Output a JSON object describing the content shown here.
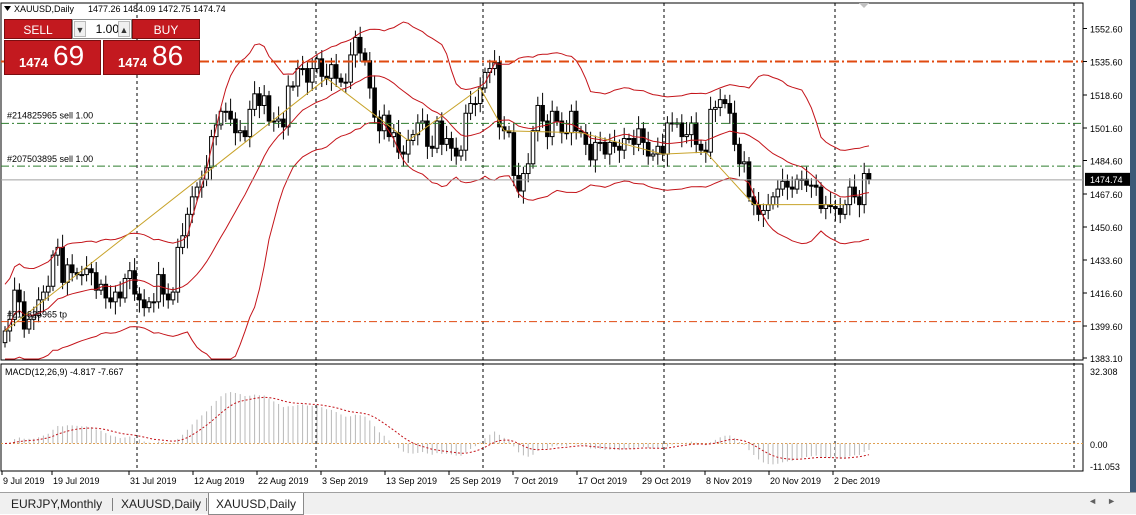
{
  "chart_header": {
    "title": "XAUUSD,Daily",
    "ohlc": "1477.26 1484.09 1472.75 1474.74"
  },
  "trade_panel": {
    "sell_label": "SELL",
    "buy_label": "BUY",
    "lot_value": "1.00",
    "sell_price_small": "1474",
    "sell_price_big": "69",
    "buy_price_small": "1474",
    "buy_price_big": "86",
    "dec_icon": "arrow-down-icon",
    "inc_icon": "arrow-up-icon"
  },
  "order_lines": {
    "sell1": "#214825965 sell 1.00",
    "sell2": "#207503895 sell 1.00",
    "tp": "#214825965 tp"
  },
  "macd": {
    "label": "MACD(12,26,9) -4.817 -7.667"
  },
  "current_price_label": "1474.74",
  "tabs": [
    {
      "label": "EURJPY,Monthly",
      "active": false
    },
    {
      "label": "XAUUSD,Daily",
      "active": false
    },
    {
      "label": "XAUUSD,Daily",
      "active": true
    }
  ],
  "colors": {
    "sell_red": "#c3191f",
    "bollinger": "#c4141a",
    "zigzag": "#c8a32a",
    "sell_level": "#e04a10",
    "order_line": "#2e7d2e",
    "macd_signal": "#c4141a",
    "macd_hist": "#b8b8b8"
  },
  "chart_data": {
    "type": "candlestick",
    "price_axis_ticks": [
      "1552.60",
      "1535.60",
      "1518.60",
      "1501.60",
      "1484.60",
      "1467.60",
      "1450.60",
      "1433.60",
      "1416.60",
      "1399.60",
      "1383.10"
    ],
    "price_range": [
      1383.1,
      1552.6
    ],
    "macd_axis_ticks": [
      "32.308",
      "0.00",
      "-11.053"
    ],
    "date_ticks": [
      "9 Jul 2019",
      "19 Jul 2019",
      "31 Jul 2019",
      "12 Aug 2019",
      "22 Aug 2019",
      "3 Sep 2019",
      "13 Sep 2019",
      "25 Sep 2019",
      "7 Oct 2019",
      "17 Oct 2019",
      "29 Oct 2019",
      "8 Nov 2019",
      "20 Nov 2019",
      "2 Dec 2019"
    ],
    "levels": {
      "sell_entry": 1535.6,
      "order_1": 1503.8,
      "order_2": 1481.8,
      "take_profit": 1401.8,
      "current_price": 1474.74
    },
    "close_prices": [
      1397,
      1403,
      1418,
      1412,
      1398,
      1403,
      1405,
      1413,
      1417,
      1420,
      1436,
      1440,
      1422,
      1431,
      1427,
      1426,
      1426,
      1429,
      1427,
      1418,
      1421,
      1414,
      1412,
      1417,
      1414,
      1424,
      1428,
      1416,
      1413,
      1409,
      1412,
      1412,
      1426,
      1416,
      1413,
      1417,
      1440,
      1446,
      1457,
      1466,
      1471,
      1475,
      1481,
      1497,
      1503,
      1510,
      1510,
      1506,
      1499,
      1500,
      1497,
      1511,
      1519,
      1513,
      1518,
      1505,
      1505,
      1506,
      1502,
      1523,
      1523,
      1532,
      1532,
      1525,
      1532,
      1537,
      1528,
      1527,
      1534,
      1527,
      1525,
      1525,
      1539,
      1548,
      1540,
      1536,
      1522,
      1507,
      1500,
      1508,
      1497,
      1499,
      1489,
      1488,
      1495,
      1498,
      1504,
      1505,
      1492,
      1491,
      1505,
      1493,
      1496,
      1491,
      1487,
      1490,
      1509,
      1514,
      1514,
      1522,
      1530,
      1532,
      1535,
      1502,
      1500,
      1499,
      1477,
      1469,
      1478,
      1483,
      1500,
      1513,
      1505,
      1497,
      1510,
      1505,
      1499,
      1499,
      1510,
      1500,
      1499,
      1493,
      1485,
      1494,
      1494,
      1488,
      1494,
      1492,
      1490,
      1496,
      1496,
      1493,
      1501,
      1494,
      1487,
      1488,
      1492,
      1488,
      1504,
      1504,
      1504,
      1497,
      1498,
      1504,
      1493,
      1490,
      1489,
      1511,
      1512,
      1516,
      1514,
      1509,
      1493,
      1483,
      1484,
      1466,
      1462,
      1457,
      1459,
      1462,
      1466,
      1470,
      1474,
      1471,
      1470,
      1475,
      1475,
      1472,
      1472,
      1471,
      1460,
      1462,
      1461,
      1460,
      1457,
      1462,
      1471,
      1466,
      1462,
      1478,
      1475
    ]
  }
}
